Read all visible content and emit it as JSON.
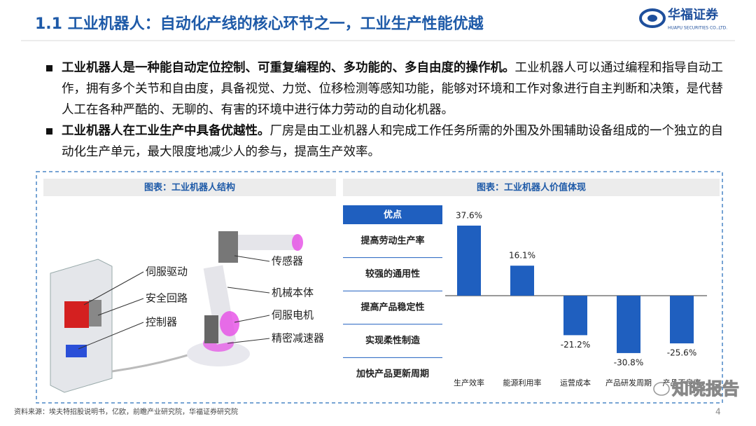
{
  "header": {
    "title": "1.1 工业机器人：自动化产线的核心环节之一，工业生产性能优越",
    "logo_name": "华福证券",
    "logo_sub": "HUAPU SECURITIES CO.,LTD."
  },
  "bullets": [
    {
      "bold": "工业机器人是一种能自动定位控制、可重复编程的、多功能的、多自由度的操作机。",
      "text": "工业机器人可以通过编程和指导自动工作，拥有多个关节和自由度，具备视觉、力觉、位移检测等感知功能，能够对环境和工作对象进行自主判断和决策，是代替人工在各种严酷的、无聊的、有害的环境中进行体力劳动的自动化机器。"
    },
    {
      "bold": "工业机器人在工业生产中具备优越性。",
      "text": "厂房是由工业机器人和完成工作任务所需的外围及外围辅助设备组成的一个独立的自动化生产单元，最大限度地减少人的参与，提高生产效率。"
    }
  ],
  "figure_left": {
    "caption": "图表：工业机器人结构",
    "labels": [
      "伺服驱动",
      "安全回路",
      "控制器",
      "传感器",
      "机械本体",
      "伺服电机",
      "精密减速器"
    ]
  },
  "figure_right": {
    "caption": "图表：工业机器人价值体现",
    "table_header": "优点",
    "table_rows": [
      "提高劳动生产率",
      "较强的通用性",
      "提高产品稳定性",
      "实现柔性制造",
      "加快产品更新周期"
    ]
  },
  "chart_data": {
    "type": "bar",
    "categories": [
      "生产效率",
      "能源利用率",
      "运营成本",
      "产品研发周期",
      "产品不良率"
    ],
    "values": [
      37.6,
      16.1,
      -21.2,
      -30.8,
      -25.6
    ],
    "value_labels": [
      "37.6%",
      "16.1%",
      "-21.2%",
      "-30.8%",
      "-25.6%"
    ],
    "color": "#1f5fbf"
  },
  "footer": {
    "source": "资料来源：埃夫特招股说明书，亿欧，前瞻产业研究院，华福证券研究院",
    "page": 4
  },
  "watermark": "知晓报告"
}
